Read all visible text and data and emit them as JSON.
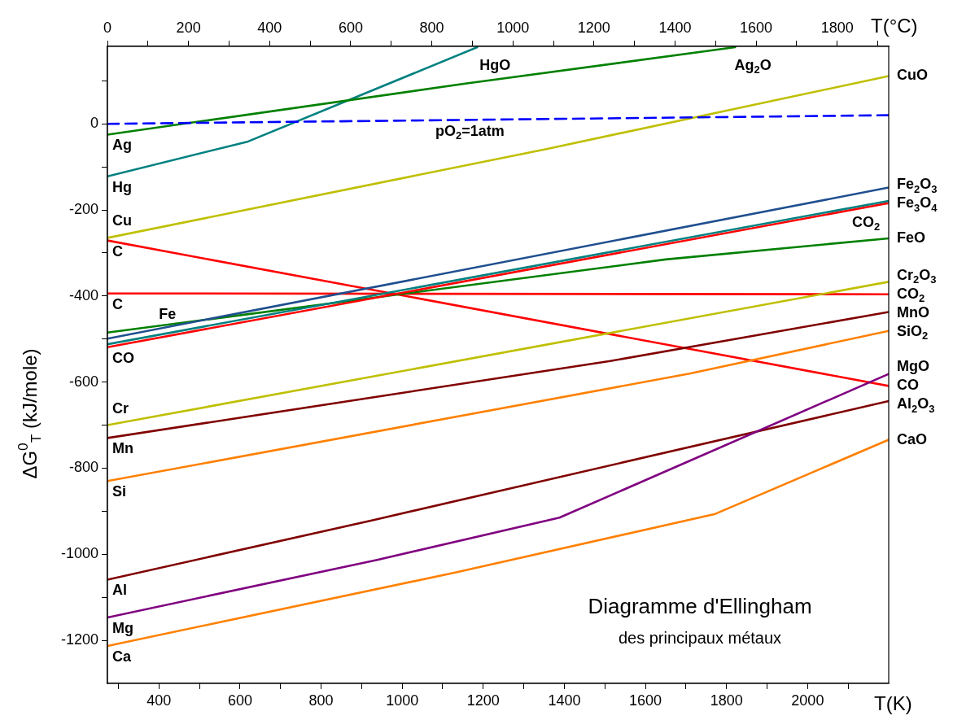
{
  "chart_data": {
    "type": "line",
    "title": "Diagramme d'Ellingham",
    "subtitle": "des principaux métaux",
    "xlabel": "T(K)",
    "x2label": "T(°C)",
    "ylabel": "ΔG$^{0}$$_{T}$ (kJ/mole)",
    "xlim": [
      273,
      2200
    ],
    "x2lim": [
      0,
      1927
    ],
    "ylim": [
      -1300,
      180
    ],
    "xticks": [
      {
        "value": 300,
        "label": null
      },
      400,
      {
        "value": 500,
        "label": null
      },
      600,
      {
        "value": 700,
        "label": null
      },
      800,
      {
        "value": 900,
        "label": null
      },
      1000,
      {
        "value": 1100,
        "label": null
      },
      1200,
      {
        "value": 1300,
        "label": null
      },
      1400,
      {
        "value": 1500,
        "label": null
      },
      1600,
      {
        "value": 1700,
        "label": null
      },
      1800,
      {
        "value": 1900,
        "label": null
      },
      2000,
      {
        "value": 2100,
        "label": null
      }
    ],
    "x2ticks": [
      0,
      {
        "value": 100,
        "label": null
      },
      200,
      {
        "value": 300,
        "label": null
      },
      400,
      {
        "value": 500,
        "label": null
      },
      600,
      {
        "value": 700,
        "label": null
      },
      800,
      {
        "value": 900,
        "label": null
      },
      1000,
      {
        "value": 1100,
        "label": null
      },
      1200,
      {
        "value": 1300,
        "label": null
      },
      1400,
      {
        "value": 1500,
        "label": null
      },
      1600,
      {
        "value": 1700,
        "label": null
      },
      1800,
      {
        "value": 1900,
        "label": null
      }
    ],
    "yticks": [
      -1200,
      {
        "value": -1100,
        "label": null
      },
      -1000,
      {
        "value": -900,
        "label": null
      },
      -800,
      {
        "value": -700,
        "label": null
      },
      -600,
      {
        "value": -500,
        "label": null
      },
      -400,
      {
        "value": -300,
        "label": null
      },
      -200,
      {
        "value": -100,
        "label": null
      },
      0,
      {
        "value": 100,
        "label": null
      }
    ],
    "grid": false,
    "legend": false,
    "marker": "none",
    "line_style": "solid",
    "series": [
      {
        "color": "#0000ff",
        "line_style": "dashed",
        "x": [
          273,
          2200
        ],
        "values": [
          0,
          20
        ]
      },
      {
        "name": "Ag$_{2}$O",
        "color": "#008000",
        "x": [
          273,
          1152,
          1821
        ],
        "values": [
          -25,
          93,
          178
        ]
      },
      {
        "name": "HgO",
        "color": "#008080",
        "x": [
          273,
          620,
          1185
        ],
        "values": [
          -122,
          -41,
          178
        ]
      },
      {
        "name": "CuO",
        "color": "#bfbf00",
        "x": [
          273,
          1358,
          2200
        ],
        "values": [
          -265,
          -58,
          111
        ]
      },
      {
        "name": "Fe$_{2}$O$_{3}$",
        "color": "#1f4f8f",
        "x": [
          273,
          2200
        ],
        "values": [
          -499,
          -148
        ]
      },
      {
        "name": "Fe$_{3}$O$_{4}$",
        "color": "#008080",
        "x": [
          273,
          2200
        ],
        "values": [
          -512,
          -179
        ]
      },
      {
        "color": "#ff0000",
        "x": [
          273,
          2200
        ],
        "values": [
          -519,
          -184
        ]
      },
      {
        "name": "FeO",
        "color": "#008000",
        "x": [
          273,
          1650,
          2200
        ],
        "values": [
          -485,
          -315,
          -266
        ]
      },
      {
        "name": "Cr$_{2}$O$_{3}$",
        "color": "#bfbf00",
        "x": [
          273,
          2200
        ],
        "values": [
          -700,
          -367
        ]
      },
      {
        "name": "CO$_{2}$",
        "color": "#ff0000",
        "x": [
          273,
          2200
        ],
        "values": [
          -394,
          -396
        ]
      },
      {
        "name": "MnO",
        "color": "#800000",
        "x": [
          273,
          1513,
          2200
        ],
        "values": [
          -730,
          -551,
          -437
        ]
      },
      {
        "name": "SiO$_{2}$",
        "color": "#ff8000",
        "x": [
          273,
          1711,
          2200
        ],
        "values": [
          -830,
          -580,
          -481
        ]
      },
      {
        "name": "MgO",
        "color": "#800080",
        "x": [
          273,
          938,
          1388,
          2200
        ],
        "values": [
          -1147,
          -1013,
          -915,
          -581
        ]
      },
      {
        "name": "CO",
        "color": "#ff0000",
        "x": [
          273,
          2200
        ],
        "values": [
          -271,
          -609
        ]
      },
      {
        "name": "Al$_{2}$O$_{3}$",
        "color": "#800000",
        "x": [
          273,
          927,
          2200
        ],
        "values": [
          -1059,
          -921,
          -644
        ]
      },
      {
        "name": "CaO",
        "color": "#ff8000",
        "x": [
          273,
          1133,
          1770,
          2200
        ],
        "values": [
          -1213,
          -1042,
          -907,
          -734
        ]
      }
    ],
    "annotations": [
      {
        "text": "pO$_{2}$=1atm",
        "x": 1070,
        "y": 8
      },
      {
        "text": "Ag",
        "x": 273,
        "y": -25
      },
      {
        "text": "Hg",
        "x": 273,
        "y": -122
      },
      {
        "text": "C",
        "x": 273,
        "y": -271
      },
      {
        "text": "Cu",
        "x": 273,
        "y": -265
      },
      {
        "text": "C",
        "x": 273,
        "y": -394
      },
      {
        "text": "Fe",
        "x": 388,
        "y": -471
      },
      {
        "text": "CO",
        "x": 273,
        "y": -519
      },
      {
        "text": "CO$_{2}$",
        "x": 2200,
        "y": -184
      },
      {
        "text": "Cr",
        "x": 273,
        "y": -700
      },
      {
        "text": "Mn",
        "x": 273,
        "y": -730
      },
      {
        "text": "Si",
        "x": 273,
        "y": -830
      },
      {
        "text": "Mg",
        "x": 273,
        "y": -1147
      },
      {
        "text": "Al",
        "x": 273,
        "y": -1059
      },
      {
        "text": "Ca",
        "x": 273,
        "y": -1213
      }
    ]
  }
}
